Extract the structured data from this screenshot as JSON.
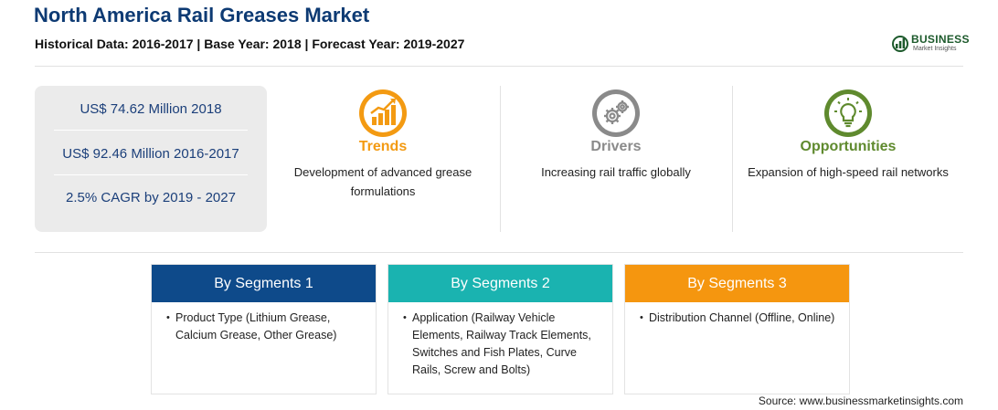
{
  "header": {
    "title": "North America Rail Greases Market",
    "subtitle": "Historical Data: 2016-2017 | Base Year: 2018 | Forecast Year: 2019-2027"
  },
  "logo": {
    "name": "BUSINESS",
    "sub": "Market Insights",
    "color": "#1d5a2c"
  },
  "stats": [
    {
      "text": "US$ 74.62 Million 2018"
    },
    {
      "text": "US$ 92.46 Million 2016-2017"
    },
    {
      "text": "2.5% CAGR by 2019 - 2027"
    }
  ],
  "features": [
    {
      "title": "Trends",
      "description": "Development of advanced grease formulations",
      "color": "#f39a12",
      "icon": "trend-chart-icon"
    },
    {
      "title": "Drivers",
      "description": "Increasing rail traffic globally",
      "color": "#8a8a8a",
      "icon": "gears-icon"
    },
    {
      "title": "Opportunities",
      "description": "Expansion of high-speed rail networks",
      "color": "#5f8a2e",
      "icon": "lightbulb-icon"
    }
  ],
  "segments": [
    {
      "heading": "By Segments 1",
      "color": "#0e4a8a",
      "items": [
        "Product Type (Lithium Grease, Calcium Grease, Other Grease)"
      ]
    },
    {
      "heading": "By Segments 2",
      "color": "#1ab3b0",
      "items": [
        "Application (Railway Vehicle Elements, Railway Track Elements, Switches and Fish Plates, Curve Rails, Screw and Bolts)"
      ]
    },
    {
      "heading": "By Segments 3",
      "color": "#f5960f",
      "items": [
        "Distribution Channel (Offline, Online)"
      ]
    }
  ],
  "footer": {
    "source": "Source: www.businessmarketinsights.com"
  }
}
